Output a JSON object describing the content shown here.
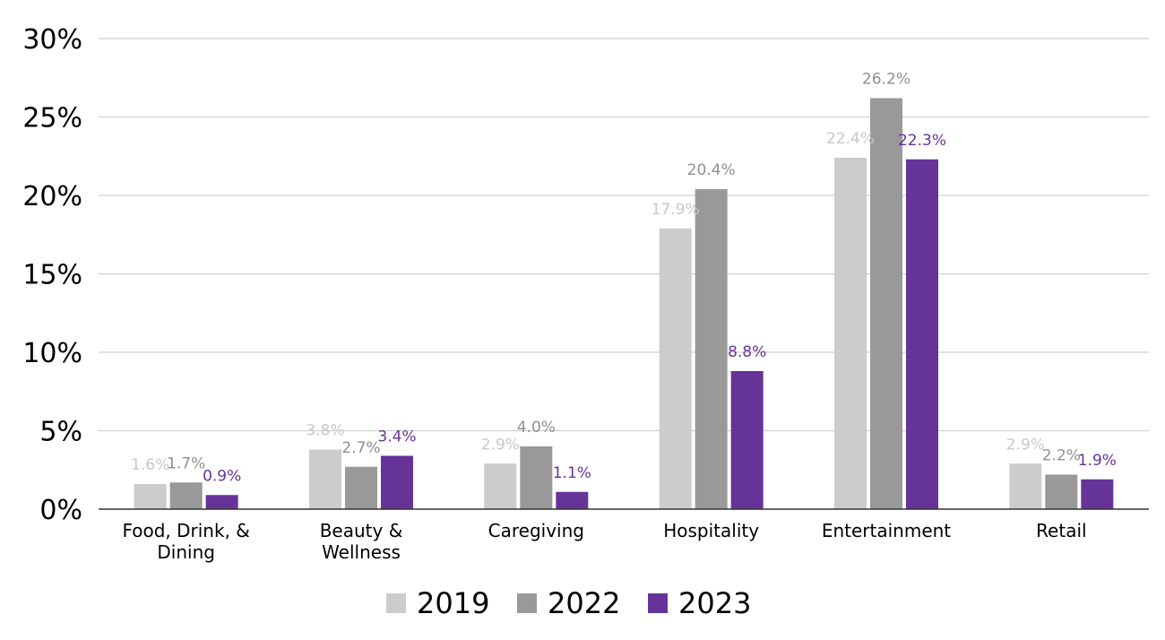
{
  "chart_data": {
    "type": "bar",
    "title": "",
    "xlabel": "",
    "ylabel": "",
    "ylim": [
      0,
      30
    ],
    "yticks": [
      0,
      5,
      10,
      15,
      20,
      25,
      30
    ],
    "ytick_labels": [
      "0%",
      "5%",
      "10%",
      "15%",
      "20%",
      "25%",
      "30%"
    ],
    "grid": true,
    "legend_position": "bottom-center",
    "categories": [
      [
        "Food, Drink, &",
        "Dining"
      ],
      [
        "Beauty &",
        "Wellness"
      ],
      [
        "Caregiving"
      ],
      [
        "Hospitality"
      ],
      [
        "Entertainment"
      ],
      [
        "Retail"
      ]
    ],
    "series": [
      {
        "name": "2019",
        "color": "#cccccc",
        "label_color": "#c8c8c8",
        "values": [
          1.6,
          3.8,
          2.9,
          17.9,
          22.4,
          2.9
        ],
        "labels": [
          "1.6%",
          "3.8%",
          "2.9%",
          "17.9%",
          "22.4%",
          "2.9%"
        ]
      },
      {
        "name": "2022",
        "color": "#999999",
        "label_color": "#8f8f8f",
        "values": [
          1.7,
          2.7,
          4.0,
          20.4,
          26.2,
          2.2
        ],
        "labels": [
          "1.7%",
          "2.7%",
          "4.0%",
          "20.4%",
          "26.2%",
          "2.2%"
        ]
      },
      {
        "name": "2023",
        "color": "#663399",
        "label_color": "#663399",
        "values": [
          0.9,
          3.4,
          1.1,
          8.8,
          22.3,
          1.9
        ],
        "labels": [
          "0.9%",
          "3.4%",
          "1.1%",
          "8.8%",
          "22.3%",
          "1.9%"
        ]
      }
    ]
  }
}
